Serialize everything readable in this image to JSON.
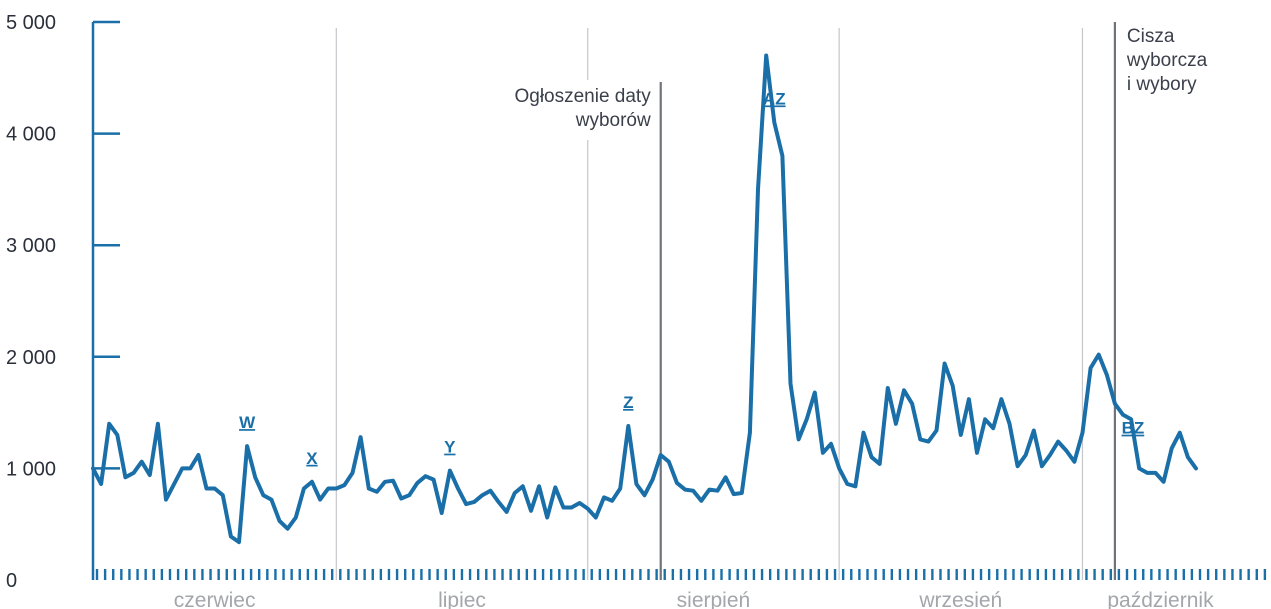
{
  "chart_data": {
    "type": "line",
    "title": "",
    "xlabel": "",
    "ylabel": "",
    "ylim": [
      0,
      5000
    ],
    "yticks": [
      {
        "value": 0,
        "label": "0"
      },
      {
        "value": 1000,
        "label": "1 000"
      },
      {
        "value": 2000,
        "label": "2 000"
      },
      {
        "value": 3000,
        "label": "3 000"
      },
      {
        "value": 4000,
        "label": "4 000"
      },
      {
        "value": 5000,
        "label": "5 000"
      }
    ],
    "x_unit": "day index from 1 June",
    "xlim": [
      0,
      145
    ],
    "months": [
      {
        "label": "czerwiec",
        "start": 0,
        "end": 30
      },
      {
        "label": "lipiec",
        "start": 30,
        "end": 61
      },
      {
        "label": "sierpień",
        "start": 61,
        "end": 92
      },
      {
        "label": "wrzesień",
        "start": 92,
        "end": 122
      },
      {
        "label": "październik",
        "start": 122,
        "end": 145
      }
    ],
    "series": [
      {
        "color": "#1a6fa8",
        "values": [
          1000,
          860,
          1400,
          1300,
          920,
          960,
          1060,
          940,
          1400,
          720,
          860,
          1000,
          1000,
          1120,
          820,
          820,
          760,
          390,
          340,
          1200,
          920,
          760,
          720,
          530,
          460,
          560,
          820,
          880,
          720,
          820,
          820,
          850,
          960,
          1280,
          820,
          790,
          880,
          890,
          730,
          760,
          870,
          930,
          900,
          600,
          980,
          820,
          680,
          700,
          760,
          800,
          700,
          610,
          780,
          840,
          620,
          840,
          560,
          830,
          650,
          650,
          690,
          640,
          560,
          740,
          710,
          820,
          1380,
          860,
          760,
          900,
          1120,
          1060,
          870,
          810,
          800,
          710,
          810,
          800,
          920,
          770,
          780,
          1320,
          3500,
          4700,
          4100,
          3800,
          1760,
          1260,
          1440,
          1680,
          1140,
          1220,
          1000,
          860,
          840,
          1320,
          1100,
          1040,
          1720,
          1400,
          1700,
          1580,
          1260,
          1240,
          1340,
          1940,
          1740,
          1300,
          1620,
          1140,
          1440,
          1360,
          1620,
          1400,
          1020,
          1120,
          1340,
          1020,
          1120,
          1240,
          1160,
          1060,
          1320,
          1900,
          2020,
          1840,
          1580,
          1480,
          1440,
          1000,
          960,
          960,
          880,
          1180,
          1320,
          1100,
          1000
        ]
      }
    ],
    "events": [
      {
        "label_lines": [
          "Ogłoszenie daty",
          "wyborów"
        ],
        "x": 70
      },
      {
        "label_lines": [
          "Cisza",
          "wyborcza",
          "i wybory"
        ],
        "x": 126
      }
    ],
    "annotations": [
      {
        "label": "W",
        "x": 19
      },
      {
        "label": "X",
        "x": 27
      },
      {
        "label": "Y",
        "x": 44
      },
      {
        "label": "Z",
        "x": 66
      },
      {
        "label": "AZ",
        "x": 84
      },
      {
        "label": "BZ",
        "x": 126
      }
    ],
    "grid": "vertical month separators",
    "legend": "none"
  }
}
